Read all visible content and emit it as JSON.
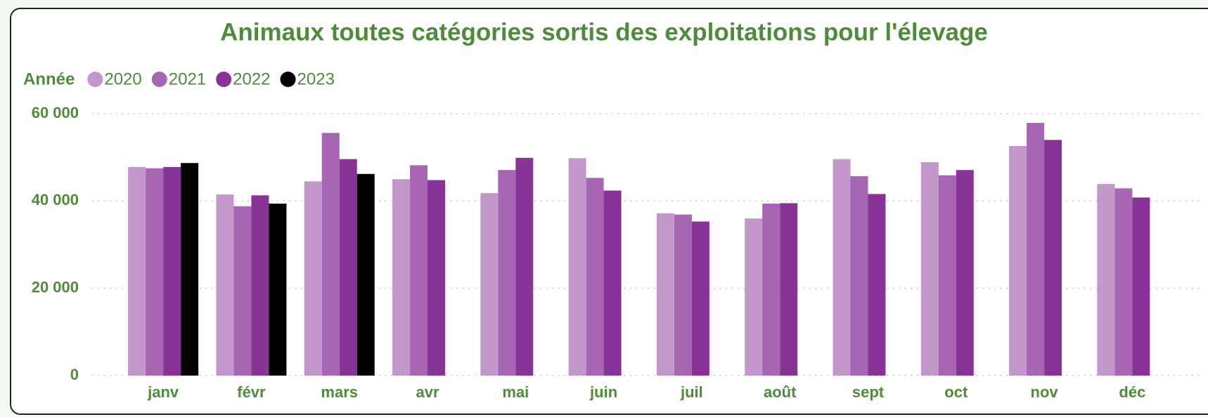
{
  "chart_data": {
    "type": "bar",
    "title": "Animaux toutes catégories sortis des exploitations pour l'élevage",
    "legend_title": "Année",
    "categories": [
      "janv",
      "févr",
      "mars",
      "avr",
      "mai",
      "juin",
      "juil",
      "août",
      "sept",
      "oct",
      "nov",
      "déc"
    ],
    "series": [
      {
        "name": "2020",
        "color": "#c397cb",
        "values": [
          47800,
          41500,
          44500,
          45000,
          41800,
          49800,
          37200,
          36000,
          49600,
          48900,
          52600,
          43900
        ]
      },
      {
        "name": "2021",
        "color": "#a666b4",
        "values": [
          47500,
          38800,
          55600,
          48200,
          47100,
          45300,
          36900,
          39400,
          45700,
          45900,
          57900,
          42900
        ]
      },
      {
        "name": "2022",
        "color": "#883496",
        "values": [
          47800,
          41300,
          49600,
          44800,
          49900,
          42400,
          35300,
          39500,
          41600,
          47100,
          54000,
          40800
        ]
      },
      {
        "name": "2023",
        "color": "#000000",
        "values": [
          48700,
          39400,
          46200,
          null,
          null,
          null,
          null,
          null,
          null,
          null,
          null,
          null
        ]
      }
    ],
    "ylim": [
      0,
      60000
    ],
    "yticks": [
      {
        "value": 0,
        "label": "0"
      },
      {
        "value": 20000,
        "label": "20 000"
      },
      {
        "value": 40000,
        "label": "40 000"
      },
      {
        "value": 60000,
        "label": "60 000"
      }
    ],
    "grid": true
  }
}
